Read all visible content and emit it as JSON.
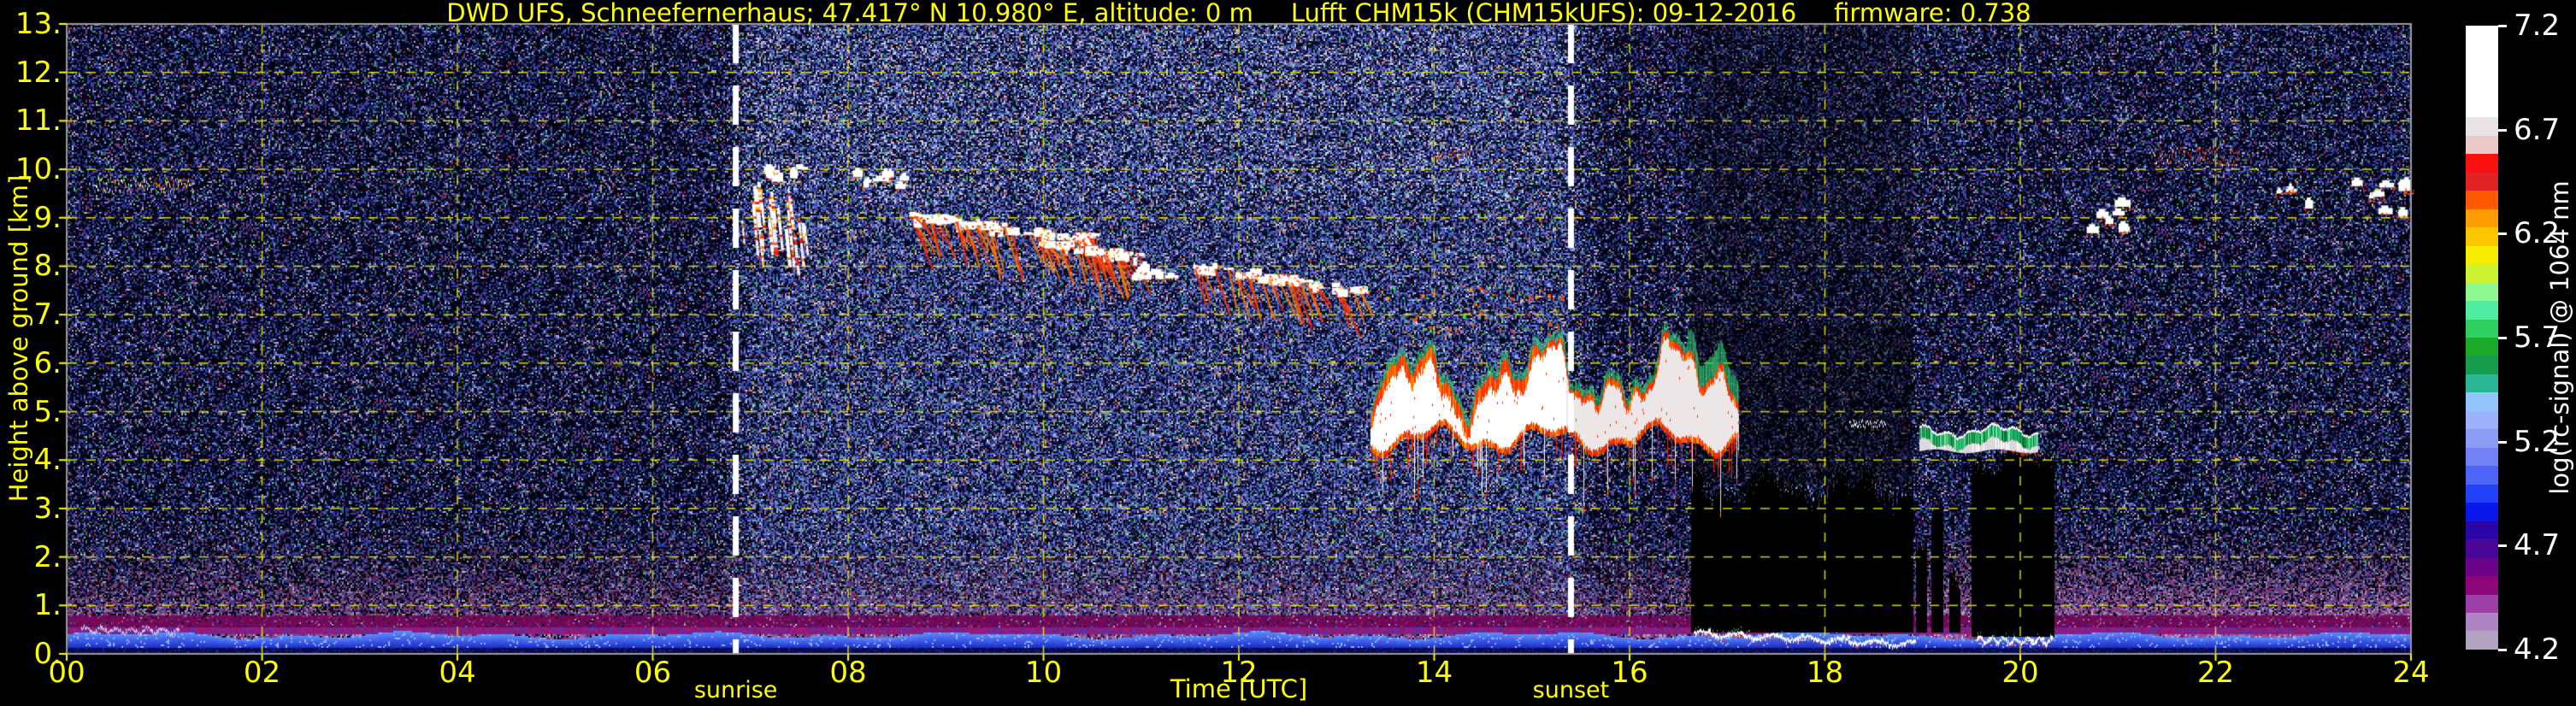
{
  "figure": {
    "title_left": "DWD UFS, Schneefernerhaus; 47.417° N 10.980° E, altitude: 0 m",
    "title_mid": "Lufft CHM15k (CHM15kUFS): 09-12-2016",
    "title_right": "firmware: 0.738",
    "background": "#000000",
    "accent_yellow": "#ffff00",
    "frame_gray": "#9a9a9a"
  },
  "axes": {
    "x_label": "Time [UTC]",
    "x_ticks": [
      "00",
      "02",
      "04",
      "06",
      "08",
      "10",
      "12",
      "14",
      "16",
      "18",
      "20",
      "22",
      "24"
    ],
    "y_label": "Height above ground [km]",
    "y_ticks": [
      "13.",
      "12.",
      "11.",
      "10.",
      "9.",
      "8.",
      "7.",
      "6.",
      "5.",
      "4.",
      "3.",
      "2.",
      "1.",
      "0."
    ],
    "sunrise_label": "sunrise",
    "sunset_label": "sunset"
  },
  "colorbar": {
    "label": "log(rc-signal) @ 1064 nm",
    "ticks": [
      "7.2",
      "6.7",
      "6.2",
      "5.7",
      "5.2",
      "4.7",
      "4.2"
    ],
    "segments": [
      "#ffffff",
      "#ffffff",
      "#ffffff",
      "#ffffff",
      "#ffffff",
      "#eae3e3",
      "#ecc9c9",
      "#fb1010",
      "#e02222",
      "#ff5a00",
      "#ff9e00",
      "#fbc600",
      "#f6ec00",
      "#ccf233",
      "#90f890",
      "#50eca0",
      "#30d060",
      "#1cab28",
      "#169c4c",
      "#28b694",
      "#94c4fc",
      "#9cb2fc",
      "#8c9cf4",
      "#7282f6",
      "#4c64f8",
      "#2240f8",
      "#0a18ec",
      "#2a06a8",
      "#4a0496",
      "#6c0388",
      "#8c0678",
      "#9c40a8",
      "#ae84c2",
      "#b2a2c2"
    ]
  },
  "chart_data": {
    "type": "heatmap",
    "title": "DWD UFS, Schneefernerhaus; 47.417° N 10.980° E, altitude: 0 m  Lufft CHM15k (CHM15kUFS): 09-12-2016  firmware: 0.738",
    "xlabel": "Time [UTC]",
    "ylabel": "Height above ground [km]",
    "x_range_hours": [
      0,
      24
    ],
    "y_range_km": [
      0,
      13
    ],
    "grid": "yellow dashed, 2 h x 1 km",
    "value_scale": {
      "label": "log(rc-signal) @ 1064 nm",
      "min": 4.2,
      "max": 7.2
    },
    "sunrise_utc": 6.85,
    "sunset_utc": 15.4,
    "aerosol": {
      "boundary_layer_top_km": 2.9,
      "blue_band_km": [
        0.14,
        0.42
      ],
      "magenta_band_km": [
        0.55,
        0.82
      ],
      "bright_columns_after_utc": 18.92,
      "blue": "#2a48e0",
      "blue_light": "#5c86f8",
      "magenta": "#5c0a50",
      "mauve": "#9a6aa0",
      "mauve_gray": "#b0a0b8"
    },
    "clouds": [
      {
        "kind": "thin-multi",
        "t": [
          0.3,
          1.3
        ],
        "h": [
          9.55,
          9.85
        ]
      },
      {
        "kind": "wisps",
        "t": [
          6.88,
          7.62
        ],
        "h": [
          8.15,
          9.75
        ],
        "n": 26
      },
      {
        "kind": "blob-row",
        "t": [
          7.05,
          7.7
        ],
        "h": [
          9.9,
          10.15
        ],
        "n": 6
      },
      {
        "kind": "blob-row",
        "t": [
          7.95,
          8.55
        ],
        "h": [
          9.65,
          10.0
        ],
        "n": 8
      },
      {
        "kind": "streak-band",
        "t": [
          8.6,
          10.6
        ],
        "h": [
          8.3,
          9.15
        ],
        "descend": 0.5,
        "n": 55
      },
      {
        "kind": "streak-band",
        "t": [
          9.95,
          10.95
        ],
        "h": [
          7.85,
          8.6
        ],
        "descend": 0.3,
        "n": 30
      },
      {
        "kind": "blob-row",
        "t": [
          10.9,
          11.25
        ],
        "h": [
          7.8,
          8.15
        ],
        "n": 8
      },
      {
        "kind": "streak-band",
        "t": [
          11.5,
          13.25
        ],
        "h": [
          7.25,
          8.15
        ],
        "descend": 0.55,
        "n": 40
      },
      {
        "kind": "storm",
        "t": [
          13.35,
          17.12
        ],
        "h": [
          4.35,
          6.65
        ]
      },
      {
        "kind": "red-streak",
        "t": [
          14.0,
          14.35
        ],
        "h": [
          10.25,
          10.4
        ]
      },
      {
        "kind": "thin-line",
        "t": [
          18.25,
          18.62
        ],
        "h": [
          4.7,
          4.85
        ]
      },
      {
        "kind": "capped",
        "t": [
          18.97,
          20.18
        ],
        "h": [
          4.12,
          4.78
        ]
      },
      {
        "kind": "blob-row",
        "t": [
          20.68,
          21.08
        ],
        "h": [
          8.8,
          9.55
        ],
        "n": 7,
        "redFringe": true
      },
      {
        "kind": "faint-streak",
        "t": [
          21.5,
          21.72
        ],
        "h": [
          5.1,
          5.95
        ]
      },
      {
        "kind": "thin-line-red",
        "t": [
          21.35,
          22.25
        ],
        "h": [
          10.1,
          10.45
        ]
      },
      {
        "kind": "blob-row",
        "t": [
          22.6,
          22.95
        ],
        "h": [
          9.3,
          9.8
        ],
        "n": 4,
        "redFringe": true
      },
      {
        "kind": "blob-row",
        "t": [
          23.35,
          24.0
        ],
        "h": [
          9.0,
          9.8
        ],
        "n": 9,
        "redFringe": true
      }
    ],
    "attenuation": [
      {
        "t": [
          16.63,
          18.9
        ],
        "hTop": 3.5,
        "hBot": 0.44,
        "rag": 0.5,
        "shadow": true
      },
      {
        "t": [
          18.93,
          19.04
        ],
        "hTop": 2.3,
        "hBot": 0.44,
        "rag": 0.3
      },
      {
        "t": [
          19.09,
          19.21
        ],
        "hTop": 2.7,
        "hBot": 0.44,
        "rag": 0.3
      },
      {
        "t": [
          19.27,
          19.38
        ],
        "hTop": 1.6,
        "hBot": 0.44,
        "rag": 0.3
      },
      {
        "t": [
          19.5,
          20.35
        ],
        "hTop": 4.05,
        "hBot": 0.35,
        "rag": 0.25
      }
    ],
    "precip_lines": [
      {
        "t": [
          16.66,
          18.92
        ],
        "h0": 0.46,
        "h1": 0.22,
        "light": false
      },
      {
        "t": [
          19.55,
          20.33
        ],
        "h0": 0.33,
        "h1": 0.28,
        "light": false
      },
      {
        "t": [
          0.15,
          1.15
        ],
        "h0": 0.52,
        "h1": 0.48,
        "light": true
      }
    ],
    "noise": {
      "night_base": "#03030e",
      "night_blue": "#2636a0",
      "day_blue": "#3848a6",
      "day_light": "#768cd0",
      "speck_green": "#30b060",
      "speck_red": "#a83840",
      "day_brighter_between_sun_lines": true
    }
  }
}
